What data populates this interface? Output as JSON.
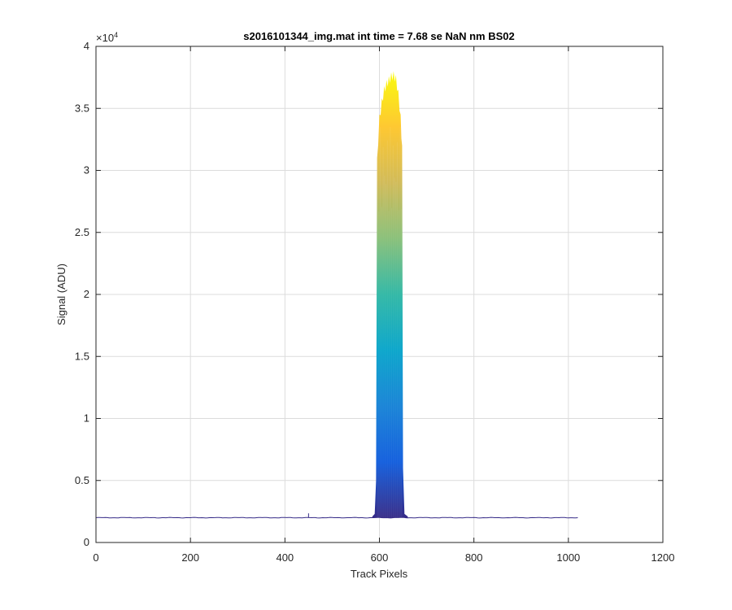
{
  "chart_data": {
    "type": "area",
    "title": "s2016101344_img.mat int time = 7.68 se  NaN nm BS02",
    "xlabel": "Track Pixels",
    "ylabel": "Signal (ADU)",
    "xlim": [
      0,
      1200
    ],
    "ylim": [
      0,
      40000
    ],
    "x_ticks": [
      0,
      200,
      400,
      600,
      800,
      1000,
      1200
    ],
    "x_tick_labels": [
      "0",
      "200",
      "400",
      "600",
      "800",
      "1000",
      "1200"
    ],
    "y_ticks": [
      0,
      5000,
      10000,
      15000,
      20000,
      25000,
      30000,
      35000,
      40000
    ],
    "y_tick_labels": [
      "0",
      "0.5",
      "1",
      "1.5",
      "2",
      "2.5",
      "3",
      "3.5",
      "4"
    ],
    "y_exponent": "×10",
    "y_exponent_power": "4",
    "grid": true,
    "colormap": [
      "#352a87",
      "#0f5cdd",
      "#1481d6",
      "#06a4ca",
      "#2eb7a4",
      "#87bf77",
      "#d1bb59",
      "#fec832",
      "#f9fb0e"
    ],
    "baseline_color": "#352a87",
    "baseline_level": 2000,
    "baseline_range": [
      0,
      1023
    ],
    "peak_range": [
      592,
      652
    ],
    "peak_max": 38000,
    "profile": [
      {
        "x": 585,
        "y": 2100
      },
      {
        "x": 590,
        "y": 2300
      },
      {
        "x": 593,
        "y": 5000
      },
      {
        "x": 595,
        "y": 31000
      },
      {
        "x": 600,
        "y": 34500
      },
      {
        "x": 605,
        "y": 35800
      },
      {
        "x": 610,
        "y": 36800
      },
      {
        "x": 615,
        "y": 37300
      },
      {
        "x": 620,
        "y": 37600
      },
      {
        "x": 625,
        "y": 37900
      },
      {
        "x": 630,
        "y": 38000
      },
      {
        "x": 635,
        "y": 37700
      },
      {
        "x": 640,
        "y": 36500
      },
      {
        "x": 645,
        "y": 34500
      },
      {
        "x": 648,
        "y": 32000
      },
      {
        "x": 650,
        "y": 6000
      },
      {
        "x": 653,
        "y": 2300
      },
      {
        "x": 660,
        "y": 2100
      }
    ]
  }
}
